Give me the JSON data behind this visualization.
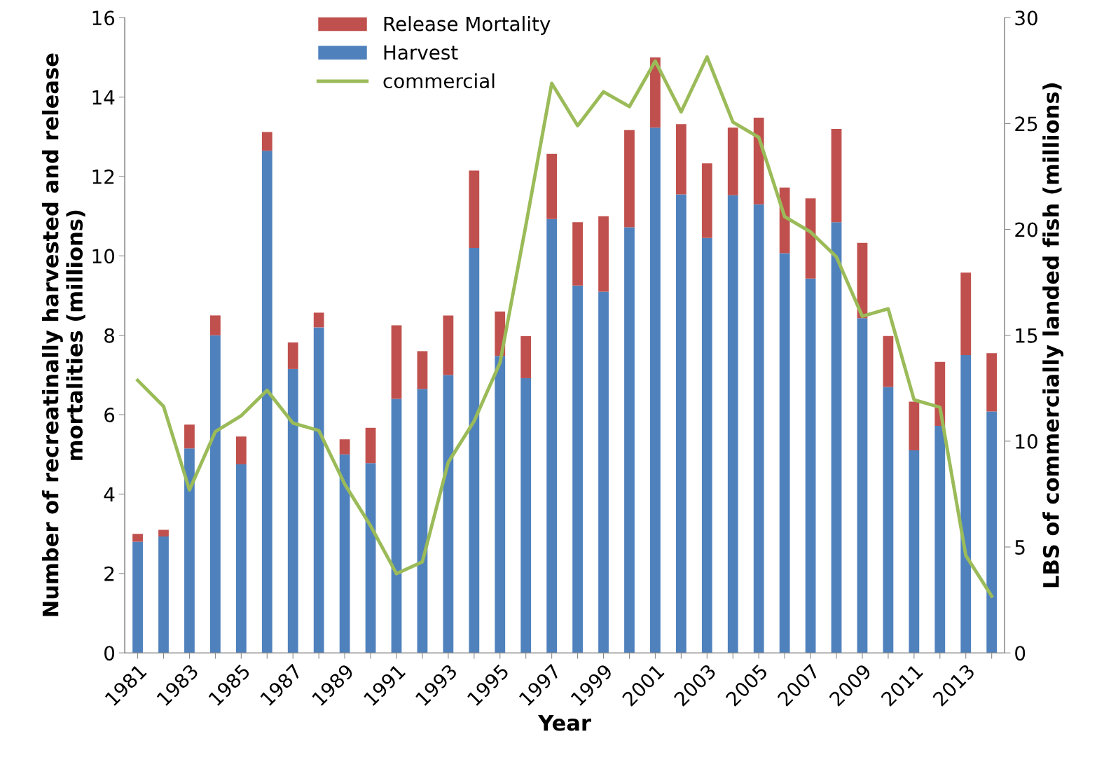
{
  "chart_data": {
    "type": "bar",
    "stacked": true,
    "categories": [
      "1981",
      null,
      "1983",
      null,
      "1985",
      null,
      "1987",
      null,
      "1989",
      null,
      "1991",
      null,
      "1993",
      null,
      "1995",
      null,
      "1997",
      null,
      "1999",
      null,
      "2001",
      null,
      "2003",
      null,
      "2005",
      null,
      "2007",
      null,
      "2009",
      null,
      "2011",
      null,
      "2013",
      null
    ],
    "xlabel": "Year",
    "ylabel": "Number of recreatinally harvested and release mortalities (millions)",
    "y2label": "LBS of commercially landed fish (millions)",
    "series": [
      {
        "name": "Harvest",
        "color": "#4f81bd",
        "values": [
          2.8,
          2.93,
          5.15,
          8.0,
          4.75,
          12.65,
          7.15,
          8.2,
          5.0,
          4.78,
          6.4,
          6.65,
          7.0,
          10.2,
          7.48,
          6.92,
          10.93,
          9.25,
          9.1,
          10.72,
          13.23,
          11.55,
          10.45,
          11.53,
          11.3,
          10.07,
          9.43,
          10.85,
          8.43,
          6.7,
          5.1,
          5.72,
          7.5,
          6.08
        ]
      },
      {
        "name": "Release Mortality",
        "color": "#c0504d",
        "values": [
          0.2,
          0.17,
          0.6,
          0.5,
          0.7,
          0.47,
          0.67,
          0.37,
          0.38,
          0.89,
          1.85,
          0.95,
          1.5,
          1.95,
          1.12,
          1.06,
          1.64,
          1.6,
          1.9,
          2.45,
          1.77,
          1.77,
          1.88,
          1.7,
          2.18,
          1.65,
          2.02,
          2.35,
          1.9,
          1.28,
          1.23,
          1.61,
          2.08,
          1.47
        ]
      },
      {
        "name": "commercial",
        "color": "#9bbb59",
        "type": "line",
        "axis": "y2",
        "values": [
          12.87,
          11.64,
          7.7,
          10.45,
          11.2,
          12.4,
          10.85,
          10.5,
          7.97,
          6.0,
          3.74,
          4.3,
          9.0,
          10.95,
          13.7,
          20.2,
          26.9,
          24.9,
          26.5,
          25.8,
          27.95,
          25.55,
          28.15,
          25.07,
          24.35,
          20.6,
          19.88,
          18.7,
          15.9,
          16.25,
          11.95,
          11.6,
          4.6,
          2.68
        ]
      }
    ],
    "ylim": [
      0,
      16
    ],
    "yticks": [
      0,
      2,
      4,
      6,
      8,
      10,
      12,
      14,
      16
    ],
    "y2lim": [
      0,
      30
    ],
    "y2ticks": [
      0,
      5,
      10,
      15,
      20,
      25,
      30
    ],
    "legend": "top left",
    "grid": false
  }
}
